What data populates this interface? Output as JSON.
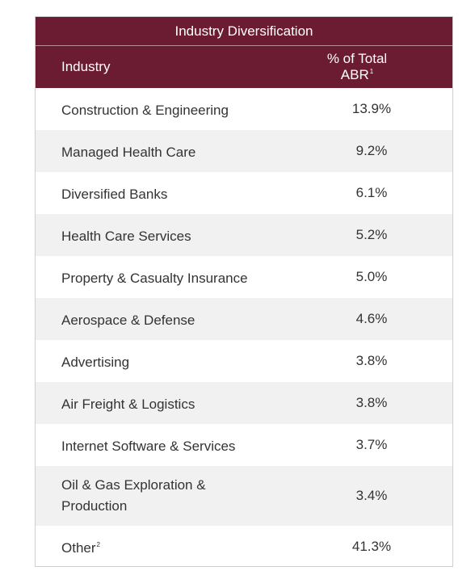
{
  "chart_data": {
    "type": "table",
    "title": "Industry Diversification",
    "columns": [
      "Industry",
      "% of Total ABR"
    ],
    "column_footnotes": [
      "",
      "1"
    ],
    "rows": [
      {
        "industry": "Construction & Engineering",
        "footnote": "",
        "value": "13.9%"
      },
      {
        "industry": "Managed Health Care",
        "footnote": "",
        "value": "9.2%"
      },
      {
        "industry": "Diversified Banks",
        "footnote": "",
        "value": "6.1%"
      },
      {
        "industry": "Health Care Services",
        "footnote": "",
        "value": "5.2%"
      },
      {
        "industry": "Property & Casualty Insurance",
        "footnote": "",
        "value": "5.0%"
      },
      {
        "industry": "Aerospace & Defense",
        "footnote": "",
        "value": "4.6%"
      },
      {
        "industry": "Advertising",
        "footnote": "",
        "value": "3.8%"
      },
      {
        "industry": "Air Freight & Logistics",
        "footnote": "",
        "value": "3.8%"
      },
      {
        "industry": "Internet Software & Services",
        "footnote": "",
        "value": "3.7%"
      },
      {
        "industry": "Oil & Gas Exploration & Production",
        "footnote": "",
        "value": "3.4%"
      },
      {
        "industry": "Other",
        "footnote": "2",
        "value": "41.3%"
      }
    ]
  },
  "colors": {
    "header_bg": "#6b1c33",
    "header_text": "#ffffff",
    "alt_row_bg": "#f1f1f1",
    "body_text": "#333333"
  }
}
